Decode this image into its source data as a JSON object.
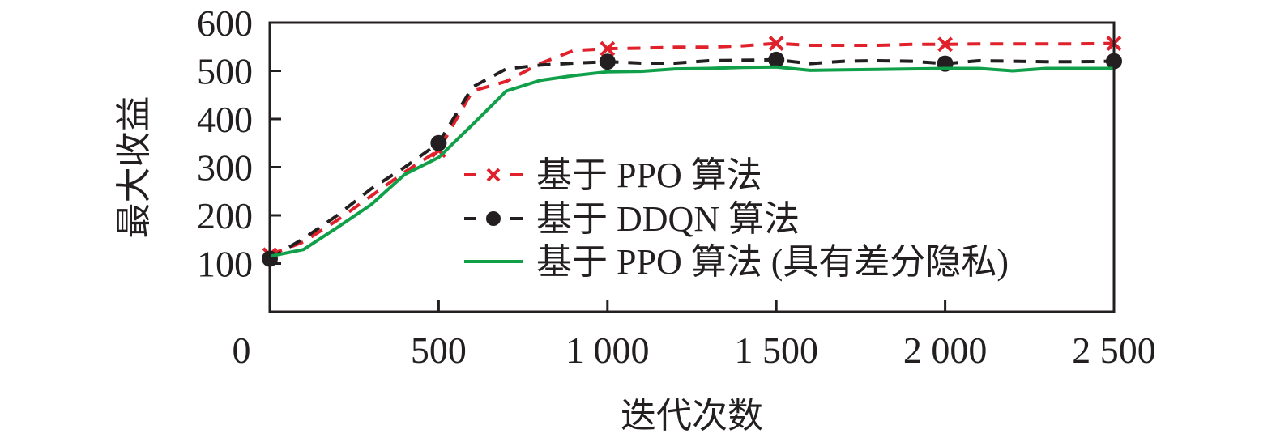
{
  "chart_data": {
    "type": "line",
    "title": "",
    "xlabel": "迭代次数",
    "ylabel": "最大收益",
    "xlim": [
      0,
      2500
    ],
    "ylim": [
      0,
      600
    ],
    "grid": false,
    "legend_position": "center-right",
    "x_ticks": [
      0,
      500,
      1000,
      1500,
      2000,
      2500
    ],
    "x_tick_labels": [
      "0",
      "500",
      "1 000",
      "1 500",
      "2 000",
      "2 500"
    ],
    "y_ticks": [
      100,
      200,
      300,
      400,
      500,
      600
    ],
    "y_tick_labels": [
      "100",
      "200",
      "300",
      "400",
      "500",
      "600"
    ],
    "x": [
      0,
      100,
      200,
      300,
      400,
      500,
      600,
      700,
      800,
      900,
      1000,
      1100,
      1200,
      1300,
      1400,
      1500,
      1600,
      1700,
      1800,
      1900,
      2000,
      2100,
      2200,
      2300,
      2400,
      2500
    ],
    "series": [
      {
        "name": "基于 PPO 算法",
        "color": "#e0202a",
        "line_style": "dashed",
        "marker": "x",
        "marker_x": [
          0,
          500,
          1000,
          1500,
          2000,
          2500
        ],
        "values": [
          118,
          145,
          190,
          240,
          290,
          335,
          458,
          478,
          515,
          542,
          546,
          547,
          549,
          549,
          552,
          557,
          553,
          553,
          553,
          555,
          555,
          556,
          556,
          556,
          556,
          557
        ]
      },
      {
        "name": "基于 DDQN 算法",
        "color": "#231f20",
        "line_style": "dashed",
        "marker": "circle",
        "marker_x": [
          0,
          500,
          1000,
          1500,
          2000,
          2500
        ],
        "values": [
          110,
          152,
          200,
          255,
          300,
          350,
          466,
          504,
          512,
          516,
          519,
          516,
          516,
          521,
          522,
          523,
          515,
          520,
          521,
          520,
          515,
          521,
          520,
          519,
          519,
          520
        ]
      },
      {
        "name": "基于 PPO 算法 (具有差分隐私)",
        "color": "#11a04a",
        "line_style": "solid",
        "marker": "none",
        "marker_x": [],
        "values": [
          115,
          129,
          175,
          222,
          285,
          320,
          388,
          458,
          480,
          490,
          498,
          499,
          504,
          505,
          507,
          508,
          501,
          502,
          503,
          504,
          505,
          505,
          500,
          505,
          505,
          505
        ]
      }
    ]
  }
}
